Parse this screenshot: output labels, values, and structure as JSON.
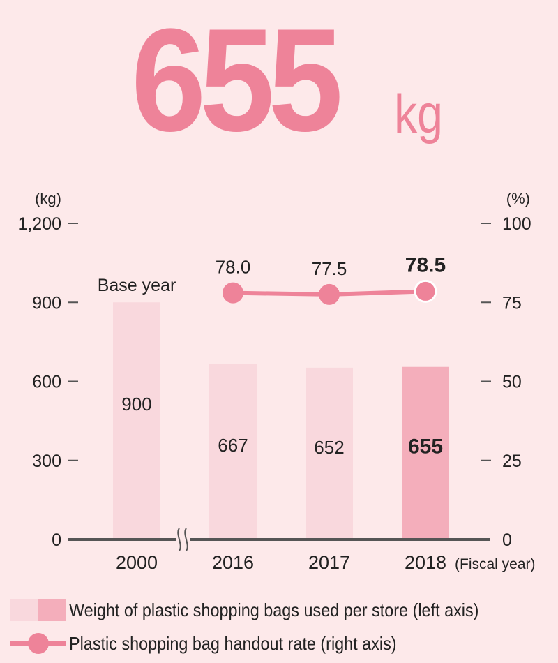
{
  "hero": {
    "value": "655",
    "unit": "kg"
  },
  "chart_data": {
    "type": "bar",
    "categories": [
      "2000",
      "2016",
      "2017",
      "2018"
    ],
    "x_suffix": "(Fiscal year)",
    "annotation": "Base year",
    "left_axis": {
      "unit": "(kg)",
      "ylim": [
        0,
        1200
      ],
      "ticks": [
        "0",
        "300",
        "600",
        "900",
        "1,200"
      ],
      "tick_values": [
        0,
        300,
        600,
        900,
        1200
      ]
    },
    "right_axis": {
      "unit": "(%)",
      "ylim": [
        0,
        100
      ],
      "ticks": [
        "0",
        "25",
        "50",
        "75",
        "100"
      ],
      "tick_values": [
        0,
        25,
        50,
        75,
        100
      ]
    },
    "series": [
      {
        "name": "Weight of plastic shopping bags used per store (left axis)",
        "type": "bar",
        "axis": "left",
        "values": [
          900,
          667,
          652,
          655
        ],
        "labels": [
          "900",
          "667",
          "652",
          "655"
        ]
      },
      {
        "name": "Plastic shopping bag handout rate (right axis)",
        "type": "line",
        "axis": "right",
        "values": [
          null,
          78.0,
          77.5,
          78.5
        ],
        "labels": [
          "",
          "78.0",
          "77.5",
          "78.5"
        ]
      }
    ],
    "highlight_index": 3,
    "colors": {
      "bar": "#f9d8dd",
      "bar_highlight": "#f4aebb",
      "line": "#ee8399",
      "axis": "#555555",
      "text": "#222222"
    }
  },
  "legend": {
    "bar_label": "Weight of plastic shopping bags used per store (left axis)",
    "line_label": "Plastic shopping bag handout rate (right axis)"
  }
}
